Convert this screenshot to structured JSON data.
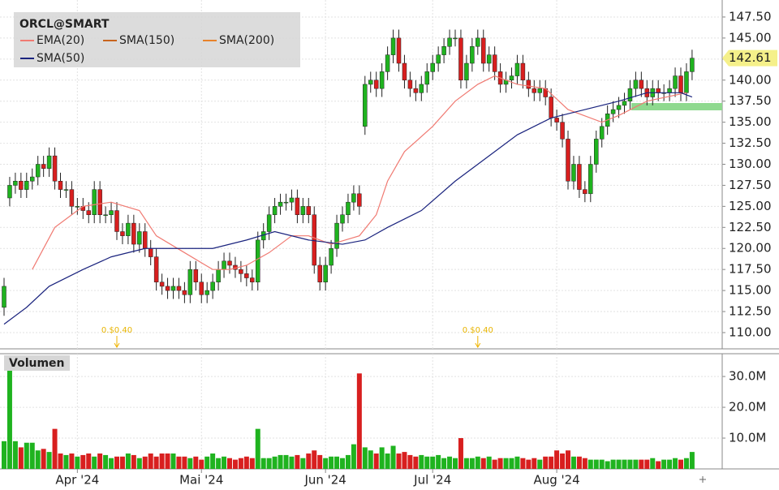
{
  "chart_data": [
    {
      "type": "candlestick",
      "title": "ORCL@SMART",
      "ylim": [
        108.07,
        149.52
      ],
      "yticks": [
        {
          "value": 110,
          "label": "110.00"
        },
        {
          "value": 112.5,
          "label": "112.50"
        },
        {
          "value": 115,
          "label": "115.00"
        },
        {
          "value": 117.5,
          "label": "117.50"
        },
        {
          "value": 120,
          "label": "120.00"
        },
        {
          "value": 122.5,
          "label": "122.50"
        },
        {
          "value": 125,
          "label": "125.00"
        },
        {
          "value": 127.5,
          "label": "127.50"
        },
        {
          "value": 130,
          "label": "130.00"
        },
        {
          "value": 132.5,
          "label": "132.50"
        },
        {
          "value": 135,
          "label": "135.00"
        },
        {
          "value": 137.5,
          "label": "137.50"
        },
        {
          "value": 140,
          "label": "140.00"
        },
        {
          "value": 142.5,
          "label": "142.50"
        },
        {
          "value": 145,
          "label": "145.00"
        },
        {
          "value": 147.5,
          "label": "147.50"
        }
      ],
      "xlim": [
        0,
        128
      ],
      "xticks": [
        {
          "value": 13,
          "label": "Apr '24"
        },
        {
          "value": 35,
          "label": "Mai '24"
        },
        {
          "value": 57,
          "label": "Jun '24"
        },
        {
          "value": 76,
          "label": "Jul '24"
        },
        {
          "value": 98,
          "label": "Aug '24"
        }
      ],
      "grid": true,
      "up_color": "#1fb31f",
      "down_color": "#d81f1f",
      "open": [
        113,
        126,
        127.5,
        128,
        127,
        128,
        128.5,
        130,
        129.5,
        131,
        128,
        127,
        127,
        125,
        125,
        124.5,
        124,
        127,
        124,
        124,
        124.5,
        122,
        121.5,
        123,
        120.5,
        122,
        120,
        119,
        116,
        115.5,
        115,
        115.5,
        115,
        114.5,
        117.5,
        116,
        114.5,
        115,
        116,
        117.5,
        118.5,
        118,
        117.5,
        117,
        116.5,
        116,
        121,
        122,
        124,
        125,
        125.5,
        125.5,
        126,
        124,
        125,
        124,
        118,
        116,
        118,
        120,
        123,
        124,
        125.5,
        126.5,
        134.5,
        139.5,
        140,
        139,
        141,
        143,
        145,
        142,
        140,
        139,
        138.5,
        139.5,
        141,
        142,
        143,
        144,
        145,
        145,
        140,
        142,
        144,
        145,
        142,
        143,
        141,
        139.5,
        140,
        140.5,
        142,
        140,
        139,
        138.5,
        139,
        138,
        135.5,
        135,
        133,
        128,
        130,
        127,
        126.5,
        130,
        133,
        134.5,
        136,
        136.5,
        137,
        137.5,
        139,
        140,
        139,
        138,
        139,
        138.5,
        138.5,
        139,
        140.5,
        138.5,
        141
      ],
      "high": [
        116.5,
        128.5,
        129,
        129,
        129,
        129.5,
        131,
        131,
        132,
        132,
        129,
        128,
        128,
        126,
        126,
        125.5,
        128,
        128,
        125,
        125.5,
        125.5,
        123,
        124,
        124,
        123,
        123,
        121,
        120,
        117,
        116.5,
        116.5,
        116.5,
        116,
        118.5,
        118.5,
        117,
        116,
        117,
        118.5,
        119.5,
        119.5,
        119,
        118.5,
        118,
        117.5,
        122,
        123,
        125,
        126,
        126.5,
        126.5,
        127,
        127,
        126,
        126,
        125,
        119,
        119,
        121,
        124,
        125,
        126.5,
        127.5,
        127.5,
        140.5,
        141,
        141,
        142,
        144,
        146,
        146,
        143,
        141,
        140,
        140.5,
        142,
        143,
        144,
        145,
        146,
        146,
        146,
        143,
        145,
        146,
        146,
        144,
        144,
        142,
        141,
        141.5,
        143,
        143,
        141,
        140,
        140,
        140,
        139,
        136.5,
        136,
        134,
        131,
        131,
        128,
        131,
        134,
        135.5,
        137,
        137.5,
        138,
        138.5,
        140,
        141,
        141,
        140,
        140,
        140,
        139.5,
        140,
        141.5,
        141.5,
        142,
        143.61
      ],
      "low": [
        112,
        125,
        126.5,
        126,
        126,
        127,
        127.5,
        128.5,
        128.5,
        127,
        126,
        126,
        124,
        124,
        123.5,
        123,
        123,
        123,
        123,
        123,
        121,
        120.5,
        120.5,
        119.5,
        119.5,
        119,
        118,
        115,
        114.5,
        114,
        114,
        114,
        113.5,
        113.5,
        115,
        113.5,
        113.5,
        114,
        115,
        116.5,
        117,
        116.5,
        116,
        115.5,
        115,
        115,
        120,
        121,
        123,
        124,
        124.5,
        124.5,
        123,
        123,
        123,
        117,
        115,
        115,
        117,
        119,
        122,
        123,
        124.5,
        124,
        133.5,
        138.5,
        138,
        138,
        140,
        142,
        141,
        139,
        138,
        137.5,
        137.5,
        138.5,
        140,
        141,
        142,
        143,
        144,
        139,
        139,
        141,
        143,
        141,
        141,
        140,
        138.5,
        138.5,
        139,
        139.5,
        139,
        138,
        137.5,
        137.5,
        137,
        134.5,
        134,
        132,
        127,
        127,
        126,
        125.5,
        125.5,
        129,
        132,
        133.5,
        135,
        135.5,
        136,
        136.5,
        138,
        138,
        137,
        137,
        137.5,
        137.5,
        137.5,
        138,
        137.5,
        137.5,
        140
      ],
      "close": [
        115.5,
        127.5,
        128,
        127,
        128,
        128.5,
        130,
        129.5,
        131,
        128,
        127,
        127,
        125,
        125,
        124.5,
        124,
        127,
        124,
        124,
        124.5,
        122,
        121.5,
        123,
        120.5,
        122,
        120,
        119,
        116,
        115.5,
        115,
        115.5,
        115,
        114.5,
        117.5,
        116,
        114.5,
        115,
        116,
        117.5,
        118.5,
        118,
        117.5,
        117,
        116.5,
        116,
        121,
        122,
        124,
        125,
        125.5,
        125.5,
        126,
        124,
        125,
        124,
        118,
        116,
        118,
        120,
        123,
        124,
        125.5,
        126.5,
        125,
        139.5,
        140,
        139,
        141,
        143,
        145,
        142,
        140,
        139,
        138.5,
        139.5,
        141,
        142,
        143,
        144,
        145,
        145,
        140,
        142,
        144,
        145,
        142,
        143,
        141,
        139.5,
        140,
        140.5,
        142,
        140,
        139,
        138.5,
        139,
        138,
        135.5,
        135,
        133,
        128,
        130,
        127,
        126.5,
        130,
        133,
        134.5,
        136,
        136.5,
        137,
        137.5,
        139,
        140,
        139,
        138,
        139,
        138.5,
        138.5,
        139,
        140.5,
        138.5,
        141,
        142.61
      ],
      "legend": [
        {
          "name": "EMA(20)",
          "color": "#f07a72"
        },
        {
          "name": "SMA(150)",
          "color": "#c8641e"
        },
        {
          "name": "SMA(200)",
          "color": "#e8822a"
        },
        {
          "name": "SMA(50)",
          "color": "#1a237e"
        }
      ],
      "lines": [
        {
          "name": "EMA(20)",
          "color": "#f07a72",
          "x": [
            5,
            9,
            14,
            19,
            24,
            27,
            32,
            37,
            40,
            43,
            47,
            51,
            54,
            58,
            63,
            66,
            68,
            71,
            76,
            80,
            84,
            87,
            91,
            96,
            100,
            106,
            109,
            114,
            121
          ],
          "values": [
            117.5,
            122.5,
            125,
            125.5,
            124.5,
            121.5,
            119.5,
            117.5,
            117.5,
            118,
            119.5,
            121.5,
            121.5,
            120.5,
            121.5,
            124,
            128,
            131.5,
            134.5,
            137.5,
            139.5,
            140.5,
            139.5,
            139,
            136.5,
            135,
            135.8,
            137.5,
            138.5
          ]
        },
        {
          "name": "SMA(50)",
          "color": "#1a237e",
          "x": [
            0,
            4,
            8,
            14,
            19,
            25,
            31,
            37,
            43,
            48,
            54,
            60,
            64,
            68,
            74,
            80,
            86,
            91,
            97,
            103,
            109,
            114,
            120,
            122
          ],
          "values": [
            111,
            113,
            115.5,
            117.5,
            119,
            120,
            120,
            120,
            121,
            122,
            121,
            120.5,
            121,
            122.5,
            124.5,
            128,
            131,
            133.5,
            135.5,
            136.5,
            137.5,
            138.5,
            138.5,
            138
          ]
        }
      ],
      "dividends": [
        {
          "x": 20,
          "label": "0.$0.40"
        },
        {
          "x": 84,
          "label": "0.$0.40"
        }
      ]
    },
    {
      "type": "bar",
      "title": "Volumen",
      "ylim": [
        0,
        37.4
      ],
      "yticks": [
        {
          "value": 10,
          "label": "10.0M"
        },
        {
          "value": 20,
          "label": "20.0M"
        },
        {
          "value": 30,
          "label": "30.0M"
        }
      ],
      "values": [
        9,
        36,
        9,
        7,
        8.5,
        8.5,
        6,
        6.5,
        5.5,
        13,
        5,
        4.5,
        5,
        4,
        4.5,
        5,
        4,
        5,
        4.5,
        3.5,
        4,
        4,
        5,
        4.5,
        3.5,
        4,
        5,
        4,
        5,
        5,
        5,
        4,
        4,
        3.5,
        4,
        3,
        4,
        5,
        3.5,
        4,
        3.5,
        3,
        3.5,
        4,
        3.5,
        13,
        3.5,
        3.5,
        4,
        4.5,
        4.5,
        4,
        4.5,
        3.5,
        5,
        6,
        4.5,
        3.5,
        4,
        4,
        3.5,
        4.5,
        8,
        31,
        7,
        6,
        5,
        7,
        5,
        7.5,
        5,
        5.5,
        4.5,
        4,
        4.5,
        4,
        4,
        4.5,
        3.5,
        4,
        3.5,
        10,
        3.5,
        3.5,
        4,
        3.5,
        4,
        3,
        3.5,
        3.5,
        3.5,
        4,
        3.5,
        3,
        3.5,
        3,
        4,
        4,
        6,
        5,
        6,
        4,
        4,
        3.5,
        3,
        3,
        3,
        2.5,
        3,
        3,
        3,
        3,
        3,
        3,
        3,
        3.5,
        2.5,
        3,
        3,
        3.5,
        3,
        3.5,
        5.5
      ]
    }
  ]
}
